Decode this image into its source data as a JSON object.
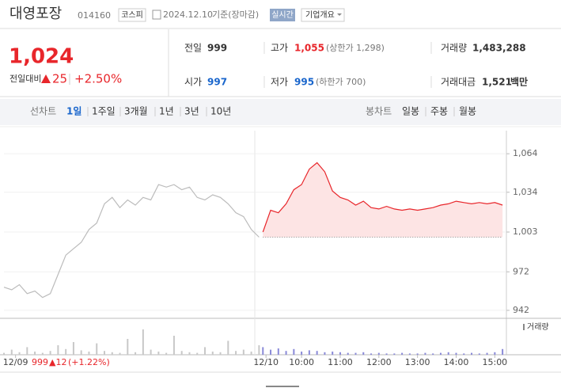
{
  "header": {
    "title": "대영포장",
    "code": "014160",
    "market": "코스피",
    "date": "2024.12.10",
    "basis": "기준(장마감)",
    "realtime": "실시간",
    "overview": "기업개요"
  },
  "price": {
    "current": "1,024",
    "change_label": "전일대비",
    "change": "25",
    "rate": "+2.50%"
  },
  "stats": {
    "prev_label": "전일",
    "prev": "999",
    "high_label": "고가",
    "high": "1,055",
    "upper_limit": "(상한가 1,298)",
    "volume_label": "거래량",
    "volume": "1,483,288",
    "open_label": "시가",
    "open": "997",
    "low_label": "저가",
    "low": "995",
    "lower_limit": "(하한가 700)",
    "amount_label": "거래대금",
    "amount": "1,521",
    "amount_unit": "백만"
  },
  "tabs": {
    "line_label": "선차트",
    "line": [
      "1일",
      "1주일",
      "3개월",
      "1년",
      "3년",
      "10년"
    ],
    "candle_label": "봉차트",
    "candle": [
      "일봉",
      "주봉",
      "월봉"
    ]
  },
  "footer": {
    "close": "999",
    "change": "▲12",
    "rate": "(+1.22%)"
  },
  "chart_data": {
    "type": "line",
    "volume_label": "거래량",
    "baseline": 999,
    "xlim": [
      2.3,
      15.3
    ],
    "ylim": [
      937,
      1082
    ],
    "vlim": [
      0,
      50000
    ],
    "grid": true,
    "yticks": [
      {
        "value": 1064,
        "label": "1,064"
      },
      {
        "value": 1034,
        "label": "1,034"
      },
      {
        "value": 1003,
        "label": "1,003"
      },
      972,
      942
    ],
    "xticks": [
      {
        "value": 2.6,
        "label": "12/09"
      },
      {
        "value": 9.08,
        "label": "12/10"
      },
      {
        "value": 10,
        "label": "10:00"
      },
      {
        "value": 11,
        "label": "11:00"
      },
      {
        "value": 12,
        "label": "12:00"
      },
      {
        "value": 13,
        "label": "13:00"
      },
      {
        "value": 14,
        "label": "14:00"
      },
      {
        "value": 15,
        "label": "15:00"
      }
    ],
    "series": [
      {
        "color": "#bbbbbb",
        "volume_color": "#c8c8c8",
        "area": false,
        "x": [
          2.3,
          2.5,
          2.7,
          2.9,
          3.1,
          3.3,
          3.5,
          3.7,
          3.9,
          4.1,
          4.3,
          4.5,
          4.7,
          4.9,
          5.1,
          5.3,
          5.5,
          5.7,
          5.9,
          6.1,
          6.3,
          6.5,
          6.7,
          6.9,
          7.1,
          7.3,
          7.5,
          7.7,
          7.9,
          8.1,
          8.3,
          8.5,
          8.7,
          8.9
        ],
        "values": [
          960,
          958,
          962,
          955,
          957,
          952,
          955,
          970,
          985,
          990,
          995,
          1005,
          1010,
          1025,
          1030,
          1022,
          1028,
          1024,
          1030,
          1028,
          1040,
          1038,
          1040,
          1036,
          1038,
          1030,
          1028,
          1032,
          1030,
          1025,
          1018,
          1015,
          1005,
          999
        ],
        "volume": [
          3000,
          8000,
          4000,
          12000,
          5000,
          3000,
          6000,
          15000,
          9000,
          20000,
          7000,
          5000,
          18000,
          6000,
          4000,
          3000,
          25000,
          4000,
          40000,
          8000,
          5000,
          3000,
          30000,
          6000,
          4000,
          3000,
          12000,
          5000,
          4000,
          22000,
          6000,
          8000,
          5000,
          15000
        ]
      },
      {
        "color": "#e8262b",
        "volume_color": "#8a8ad8",
        "area": true,
        "area_color": "#fde4e4",
        "x": [
          9.0,
          9.2,
          9.4,
          9.6,
          9.8,
          10.0,
          10.2,
          10.4,
          10.6,
          10.8,
          11.0,
          11.2,
          11.4,
          11.6,
          11.8,
          12.0,
          12.2,
          12.4,
          12.6,
          12.8,
          13.0,
          13.2,
          13.4,
          13.6,
          13.8,
          14.0,
          14.2,
          14.4,
          14.6,
          14.8,
          15.0,
          15.2
        ],
        "values": [
          1003,
          1020,
          1018,
          1025,
          1036,
          1040,
          1052,
          1057,
          1050,
          1035,
          1030,
          1028,
          1024,
          1027,
          1022,
          1021,
          1023,
          1021,
          1020,
          1021,
          1020,
          1021,
          1022,
          1024,
          1025,
          1027,
          1026,
          1025,
          1026,
          1025,
          1026,
          1024
        ],
        "volume": [
          12000,
          8000,
          10000,
          6000,
          9000,
          5000,
          7000,
          6000,
          4000,
          5000,
          4000,
          3000,
          3000,
          4000,
          2000,
          3000,
          2000,
          2000,
          3000,
          2000,
          2000,
          3000,
          2000,
          3000,
          4000,
          3000,
          2000,
          3000,
          2000,
          3000,
          4000,
          9000
        ]
      }
    ]
  }
}
